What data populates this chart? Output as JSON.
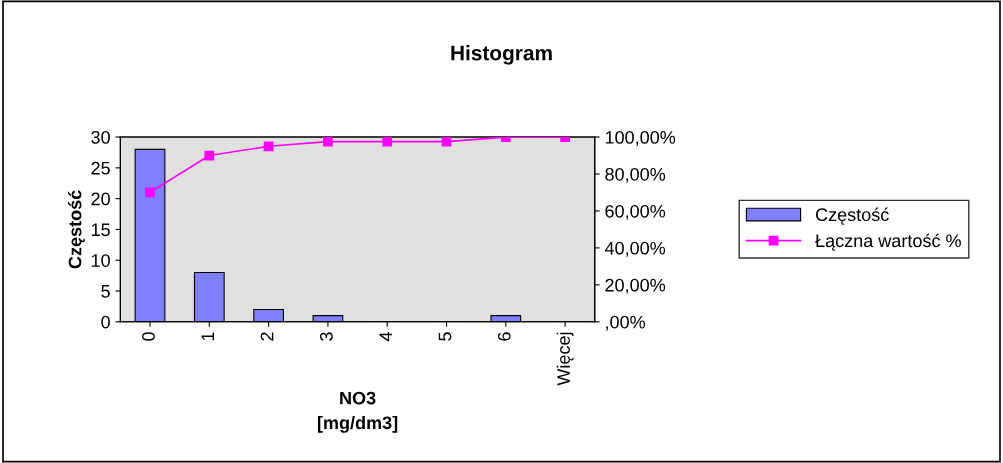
{
  "chart_data": {
    "type": "bar",
    "title": "Histogram",
    "xlabel": "NO3\n[mg/dm3]",
    "ylabel": "Częstość",
    "categories": [
      "0",
      "1",
      "2",
      "3",
      "4",
      "5",
      "6",
      "Więcej"
    ],
    "series": [
      {
        "name": "Częstość",
        "color": "#8080ff",
        "values": [
          28,
          8,
          2,
          1,
          0,
          0,
          1,
          0
        ]
      },
      {
        "name": "Łączna wartość %",
        "type": "line",
        "axis": "y2",
        "color": "#ff00ff",
        "marker": "square",
        "values": [
          70,
          90,
          95,
          97.5,
          97.5,
          97.5,
          100,
          100
        ]
      }
    ],
    "ylim": [
      0,
      30
    ],
    "yticks": [
      0,
      5,
      10,
      15,
      20,
      25,
      30
    ],
    "y2lim": [
      0,
      100
    ],
    "y2ticks": [
      {
        "value": 0,
        "label": ",00%"
      },
      {
        "value": 20,
        "label": "20,00%"
      },
      {
        "value": 40,
        "label": "40,00%"
      },
      {
        "value": 60,
        "label": "60,00%"
      },
      {
        "value": 80,
        "label": "80,00%"
      },
      {
        "value": 100,
        "label": "100,00%"
      }
    ],
    "grid": false,
    "legend": "right"
  }
}
